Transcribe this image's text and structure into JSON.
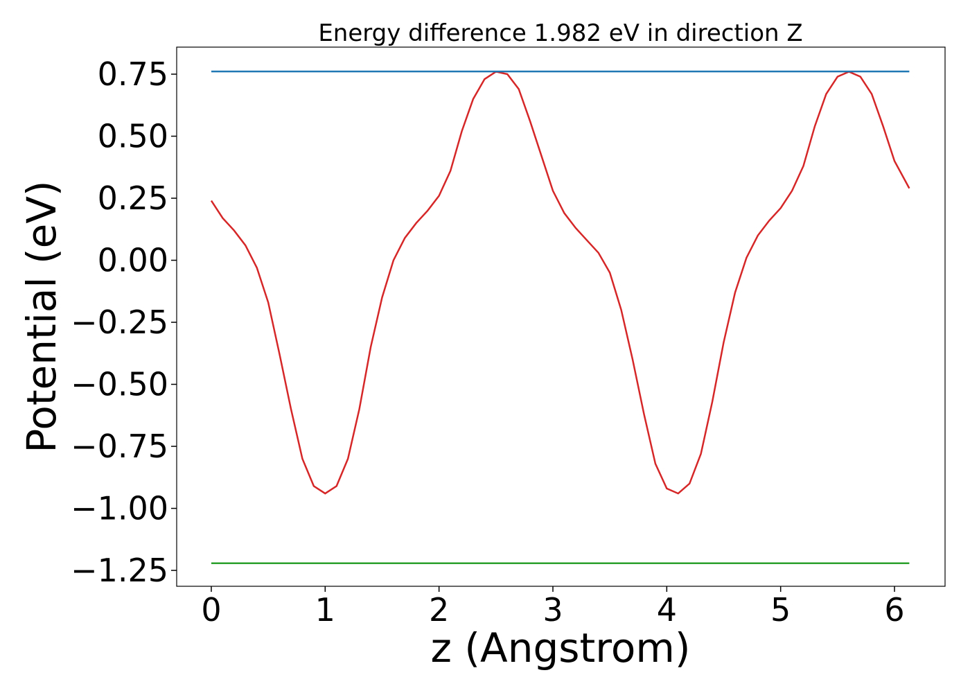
{
  "chart_data": {
    "type": "line",
    "title": "Energy difference 1.982 eV in direction Z",
    "xlabel": "z (Angstrom)",
    "ylabel": "Potential (eV)",
    "xlim": [
      -0.304,
      6.444
    ],
    "ylim": [
      -1.314,
      0.859
    ],
    "xticks": [
      0,
      1,
      2,
      3,
      4,
      5,
      6
    ],
    "yticks": [
      0.75,
      {
        "value": 0.5,
        "label": "0.50"
      },
      0.25,
      {
        "value": 0,
        "label": "0.00"
      },
      {
        "value": -0.25,
        "label": "−0.25"
      },
      {
        "value": -0.5,
        "label": "−0.50"
      },
      {
        "value": -0.75,
        "label": "−0.75"
      },
      {
        "value": -1.0,
        "label": "−1.00"
      },
      {
        "value": -1.25,
        "label": "−1.25"
      }
    ],
    "grid": false,
    "series": [
      {
        "color": "#d62728",
        "x": [
          0,
          0.1,
          0.2,
          0.3,
          0.4,
          0.5,
          0.6,
          0.7,
          0.8,
          0.9,
          1.0,
          1.1,
          1.2,
          1.3,
          1.4,
          1.5,
          1.6,
          1.7,
          1.8,
          1.9,
          2.0,
          2.1,
          2.2,
          2.3,
          2.4,
          2.5,
          2.6,
          2.7,
          2.8,
          2.9,
          3.0,
          3.1,
          3.2,
          3.3,
          3.4,
          3.5,
          3.6,
          3.7,
          3.8,
          3.9,
          4.0,
          4.1,
          4.2,
          4.3,
          4.4,
          4.5,
          4.6,
          4.7,
          4.8,
          4.9,
          5.0,
          5.1,
          5.2,
          5.3,
          5.4,
          5.5,
          5.6,
          5.7,
          5.8,
          5.9,
          6.0,
          6.13
        ],
        "values": [
          0.24,
          0.17,
          0.12,
          0.06,
          -0.03,
          -0.17,
          -0.38,
          -0.6,
          -0.8,
          -0.91,
          -0.94,
          -0.91,
          -0.8,
          -0.6,
          -0.35,
          -0.15,
          0.0,
          0.09,
          0.15,
          0.2,
          0.26,
          0.36,
          0.52,
          0.65,
          0.73,
          0.76,
          0.75,
          0.69,
          0.56,
          0.42,
          0.28,
          0.19,
          0.13,
          0.08,
          0.03,
          -0.05,
          -0.2,
          -0.4,
          -0.62,
          -0.82,
          -0.92,
          -0.94,
          -0.9,
          -0.78,
          -0.57,
          -0.33,
          -0.13,
          0.01,
          0.1,
          0.16,
          0.21,
          0.28,
          0.38,
          0.54,
          0.67,
          0.74,
          0.76,
          0.74,
          0.67,
          0.54,
          0.4,
          0.29
        ]
      },
      {
        "color": "#1f77b4",
        "x": [
          0,
          6.13
        ],
        "values": [
          0.761,
          0.761
        ]
      },
      {
        "color": "#2ca02c",
        "x": [
          0,
          6.13
        ],
        "values": [
          -1.221,
          -1.221
        ]
      }
    ]
  }
}
